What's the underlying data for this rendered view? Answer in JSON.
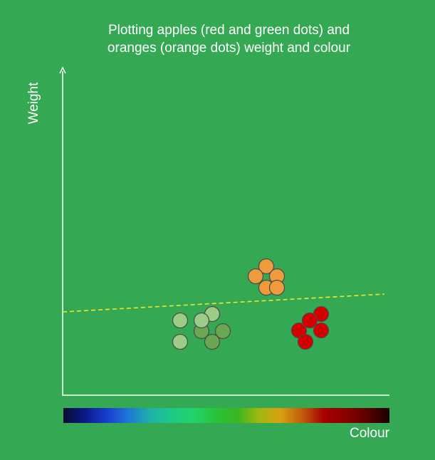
{
  "title": {
    "line1": "Plotting apples (red and green dots) and",
    "line2": "oranges (orange dots) weight and colour"
  },
  "axes": {
    "y_label": "Weight",
    "x_label": "Colour"
  },
  "colors": {
    "background": "#34a853",
    "axis": "#ffffff",
    "divider": "#f2e629",
    "orange_fill": "#ef9a3c",
    "red_fill": "#d40000",
    "green_light_fill": "#9ccc85",
    "green_dark_fill": "#6aa84f",
    "dot_stroke": "#4a4a4a"
  },
  "legend_gradient": [
    "#0b0b33",
    "#0a1a8a",
    "#1a3cd0",
    "#1e78d8",
    "#1fb1a8",
    "#1ec987",
    "#22d36a",
    "#27c43a",
    "#3ab521",
    "#a2b80e",
    "#d8a010",
    "#c05a0c",
    "#a80000",
    "#8a0000",
    "#5a0000",
    "#1a0000"
  ],
  "icons": {
    "y_axis_arrow": "arrow-up-icon"
  }
}
